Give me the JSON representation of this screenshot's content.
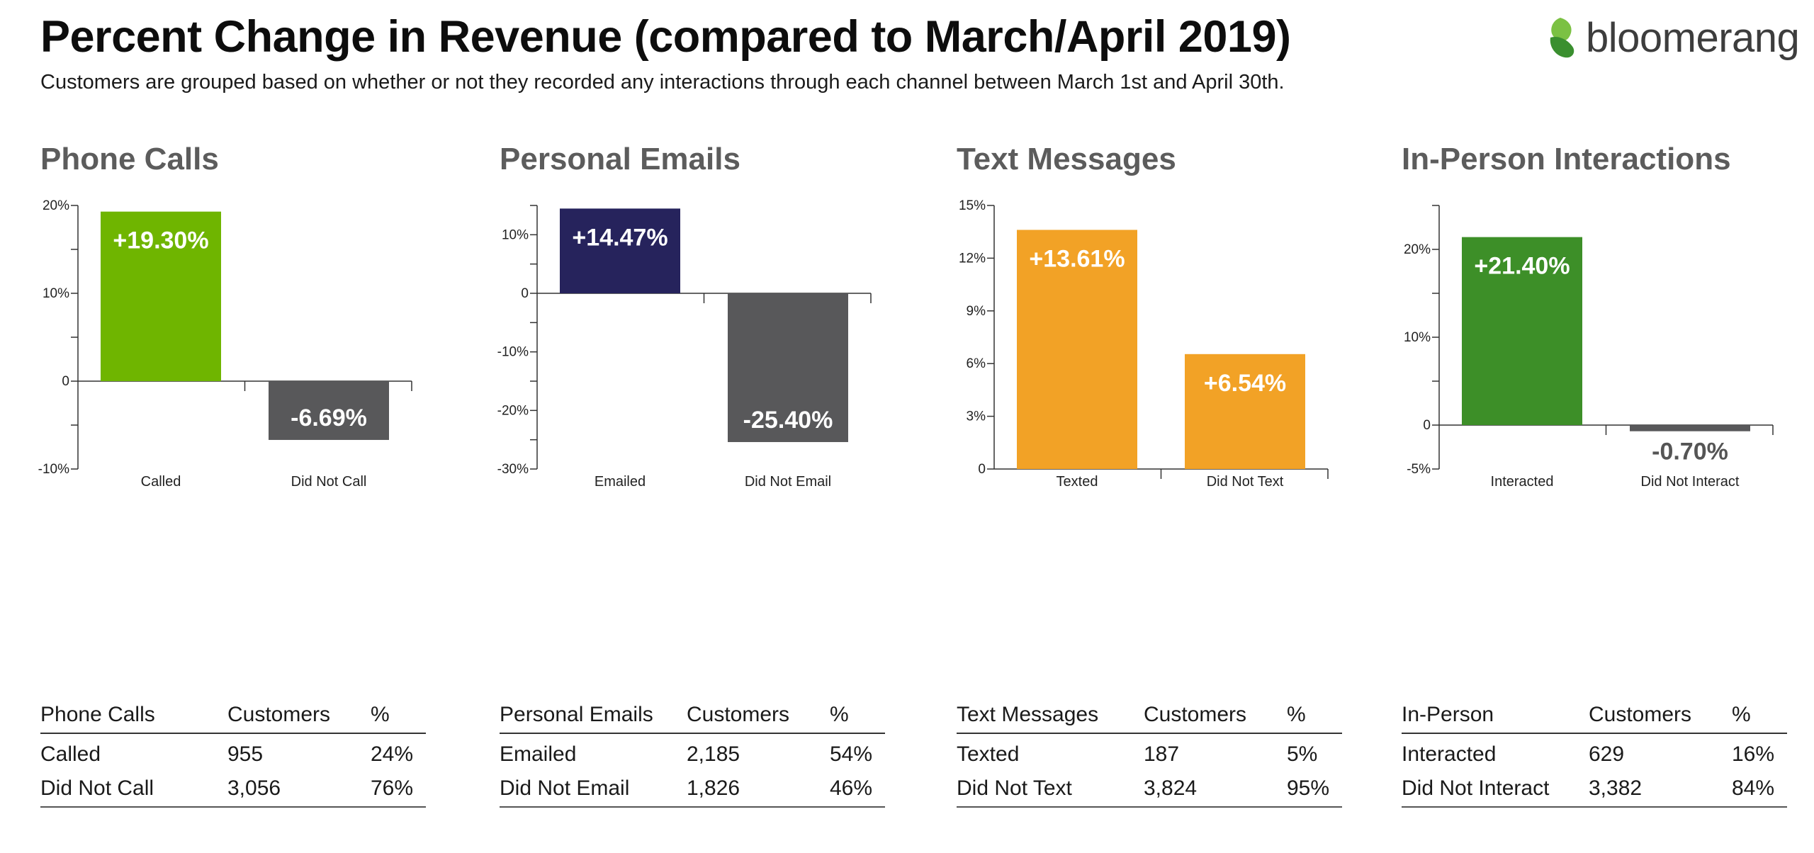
{
  "header": {
    "title": "Percent Change in Revenue (compared to March/April 2019)",
    "subtitle": "Customers are grouped based on whether or not they recorded any interactions through each channel between March 1st and April 30th."
  },
  "logo": {
    "text": "bloomerang",
    "icon": "bloomerang-leaf-icon",
    "colors": [
      "#7bc143",
      "#3a8f2f"
    ]
  },
  "chart_data": [
    {
      "type": "bar",
      "title": "Phone Calls",
      "categories": [
        "Called",
        "Did Not Call"
      ],
      "values": [
        19.3,
        -6.69
      ],
      "value_labels": [
        "+19.30%",
        "-6.69%"
      ],
      "colors": [
        "#6fb500",
        "#58585a"
      ],
      "ylim": [
        -10,
        20
      ],
      "ytick_values": [
        -10,
        -5,
        0,
        5,
        10,
        15,
        20
      ],
      "ytick_labels": [
        "-10%",
        "",
        "0",
        "",
        "10%",
        "",
        "20%"
      ],
      "grid": false
    },
    {
      "type": "bar",
      "title": "Personal Emails",
      "categories": [
        "Emailed",
        "Did Not Email"
      ],
      "values": [
        14.47,
        -25.4
      ],
      "value_labels": [
        "+14.47%",
        "-25.40%"
      ],
      "colors": [
        "#26235c",
        "#58585a"
      ],
      "ylim": [
        -30,
        15
      ],
      "ytick_values": [
        -30,
        -25,
        -20,
        -15,
        -10,
        -5,
        0,
        5,
        10,
        15
      ],
      "ytick_labels": [
        "-30%",
        "",
        "-20%",
        "",
        "-10%",
        "",
        "0",
        "",
        "10%",
        ""
      ],
      "grid": false
    },
    {
      "type": "bar",
      "title": "Text Messages",
      "categories": [
        "Texted",
        "Did Not Text"
      ],
      "values": [
        13.61,
        6.54
      ],
      "value_labels": [
        "+13.61%",
        "+6.54%"
      ],
      "colors": [
        "#f2a226",
        "#f2a226"
      ],
      "ylim": [
        0,
        15
      ],
      "ytick_values": [
        0,
        3,
        6,
        9,
        12,
        15
      ],
      "ytick_labels": [
        "0",
        "3%",
        "6%",
        "9%",
        "12%",
        "15%"
      ],
      "grid": false
    },
    {
      "type": "bar",
      "title": "In-Person Interactions",
      "categories": [
        "Interacted",
        "Did Not Interact"
      ],
      "values": [
        21.4,
        -0.7
      ],
      "value_labels": [
        "+21.40%",
        "-0.70%"
      ],
      "colors": [
        "#3d8f28",
        "#58585a"
      ],
      "ylim": [
        -5,
        25
      ],
      "ytick_values": [
        -5,
        0,
        5,
        10,
        15,
        20,
        25
      ],
      "ytick_labels": [
        "-5%",
        "0",
        "",
        "10%",
        "",
        "20%",
        ""
      ],
      "grid": false
    }
  ],
  "tables": [
    {
      "headers": [
        "Phone Calls",
        "Customers",
        "%"
      ],
      "rows": [
        [
          "Called",
          "955",
          "24%"
        ],
        [
          "Did Not Call",
          "3,056",
          "76%"
        ]
      ]
    },
    {
      "headers": [
        "Personal Emails",
        "Customers",
        "%"
      ],
      "rows": [
        [
          "Emailed",
          "2,185",
          "54%"
        ],
        [
          "Did Not Email",
          "1,826",
          "46%"
        ]
      ]
    },
    {
      "headers": [
        "Text Messages",
        "Customers",
        "%"
      ],
      "rows": [
        [
          "Texted",
          "187",
          "5%"
        ],
        [
          "Did Not Text",
          "3,824",
          "95%"
        ]
      ]
    },
    {
      "headers": [
        "In-Person",
        "Customers",
        "%"
      ],
      "rows": [
        [
          "Interacted",
          "629",
          "16%"
        ],
        [
          "Did Not Interact",
          "3,382",
          "84%"
        ]
      ]
    }
  ]
}
